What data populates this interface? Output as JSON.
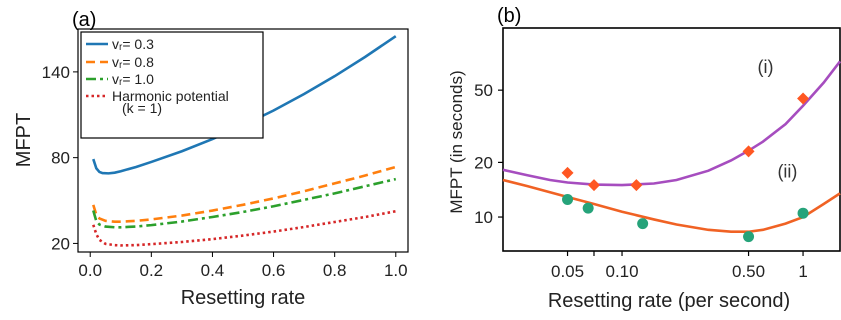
{
  "chart_data": [
    {
      "type": "line",
      "panel_label": "(a)",
      "xlabel": "Resetting rate",
      "ylabel": "MFPT",
      "xlim": [
        -0.04,
        1.04
      ],
      "ylim": [
        14,
        170
      ],
      "x_ticks": [
        0.0,
        0.2,
        0.4,
        0.6,
        0.8,
        1.0
      ],
      "x_tick_labels": [
        "0.0",
        "0.2",
        "0.4",
        "0.6",
        "0.8",
        "1.0"
      ],
      "y_ticks": [
        20,
        80,
        140
      ],
      "y_tick_labels": [
        "20",
        "80",
        "140"
      ],
      "legend_position": "top-left",
      "series": [
        {
          "name": "vᵣ= 0.3",
          "color": "#1f77b4",
          "dash": "solid",
          "x": [
            0.01,
            0.02,
            0.03,
            0.04,
            0.06,
            0.08,
            0.1,
            0.15,
            0.2,
            0.3,
            0.4,
            0.5,
            0.6,
            0.7,
            0.8,
            0.9,
            1.0
          ],
          "y": [
            79.0,
            72.5,
            70.0,
            69.2,
            69.0,
            69.5,
            70.5,
            73.5,
            77.0,
            84.5,
            93.0,
            102.5,
            113.0,
            124.5,
            137.0,
            150.5,
            165.0
          ]
        },
        {
          "name": "vᵣ= 0.8",
          "color": "#ff7f0e",
          "dash": "dashed",
          "x": [
            0.01,
            0.02,
            0.03,
            0.05,
            0.08,
            0.1,
            0.15,
            0.2,
            0.3,
            0.4,
            0.5,
            0.6,
            0.7,
            0.8,
            0.9,
            1.0
          ],
          "y": [
            47.0,
            40.0,
            37.5,
            35.8,
            35.2,
            35.2,
            35.8,
            36.8,
            39.5,
            43.0,
            47.0,
            51.5,
            56.5,
            62.0,
            67.5,
            73.5
          ]
        },
        {
          "name": "vᵣ= 1.0",
          "color": "#2ca02c",
          "dash": "dashdot",
          "x": [
            0.01,
            0.02,
            0.03,
            0.05,
            0.08,
            0.1,
            0.15,
            0.2,
            0.3,
            0.4,
            0.5,
            0.6,
            0.7,
            0.8,
            0.9,
            1.0
          ],
          "y": [
            43.0,
            35.5,
            33.2,
            31.8,
            31.3,
            31.3,
            31.8,
            32.8,
            35.3,
            38.5,
            42.0,
            46.0,
            50.5,
            55.0,
            60.0,
            65.0
          ]
        },
        {
          "name": "Harmonic potential",
          "name_line2": "(k = 1)",
          "color": "#d62728",
          "dash": "dotted",
          "x": [
            0.01,
            0.02,
            0.03,
            0.05,
            0.08,
            0.1,
            0.15,
            0.2,
            0.3,
            0.4,
            0.5,
            0.6,
            0.7,
            0.8,
            0.9,
            1.0
          ],
          "y": [
            33.0,
            26.5,
            22.5,
            19.7,
            18.8,
            18.6,
            18.8,
            19.5,
            21.0,
            23.0,
            25.5,
            28.3,
            31.5,
            35.0,
            38.5,
            42.5
          ]
        }
      ]
    },
    {
      "type": "scatter",
      "panel_label": "(b)",
      "xlabel": "Resetting rate (per second)",
      "ylabel": "MFPT (in seconds)",
      "x_scale": "log",
      "y_scale": "log",
      "xlim": [
        0.022,
        1.6
      ],
      "ylim": [
        6.5,
        110
      ],
      "x_ticks": [
        0.05,
        0.07,
        0.1,
        0.5,
        1
      ],
      "x_tick_labels": [
        "0.05",
        "",
        "0.10",
        "0.50",
        "1"
      ],
      "x_tick_label_positions": [
        0.05,
        0.1,
        0.5,
        1
      ],
      "x_tick_label_texts": [
        "0.05",
        "0.10",
        "0.50",
        "1"
      ],
      "y_ticks": [
        10,
        20,
        50
      ],
      "y_tick_labels": [
        "10",
        "20",
        "50"
      ],
      "annotations": [
        {
          "text": "(i)",
          "x": 0.62,
          "y": 62
        },
        {
          "text": "(ii)",
          "x": 0.82,
          "y": 16.5
        }
      ],
      "series": [
        {
          "name": "(i)",
          "marker": "diamond",
          "color": "#ff5722",
          "points_x": [
            0.05,
            0.07,
            0.12,
            0.5,
            1.0
          ],
          "points_y": [
            17.5,
            15.0,
            15.0,
            23.0,
            45.0
          ],
          "fit_color": "#a64dbf",
          "fit_x": [
            0.022,
            0.03,
            0.04,
            0.05,
            0.07,
            0.1,
            0.15,
            0.2,
            0.3,
            0.4,
            0.5,
            0.6,
            0.8,
            1.0,
            1.3,
            1.6
          ],
          "fit_y": [
            18.2,
            17.0,
            16.0,
            15.5,
            15.1,
            15.0,
            15.3,
            16.0,
            18.0,
            20.5,
            23.2,
            26.0,
            32.5,
            41.0,
            55.0,
            72.0
          ]
        },
        {
          "name": "(ii)",
          "marker": "circle",
          "color": "#26a37a",
          "points_x": [
            0.05,
            0.065,
            0.13,
            0.5,
            1.0
          ],
          "points_y": [
            12.5,
            11.2,
            9.2,
            7.8,
            10.5
          ],
          "fit_color": "#f06224",
          "fit_x": [
            0.022,
            0.03,
            0.04,
            0.05,
            0.07,
            0.1,
            0.15,
            0.2,
            0.3,
            0.4,
            0.5,
            0.6,
            0.8,
            1.0,
            1.3,
            1.6
          ],
          "fit_y": [
            16.0,
            14.8,
            13.7,
            12.9,
            11.8,
            10.7,
            9.7,
            9.1,
            8.5,
            8.3,
            8.3,
            8.5,
            9.2,
            10.0,
            11.8,
            13.5
          ]
        }
      ]
    }
  ]
}
